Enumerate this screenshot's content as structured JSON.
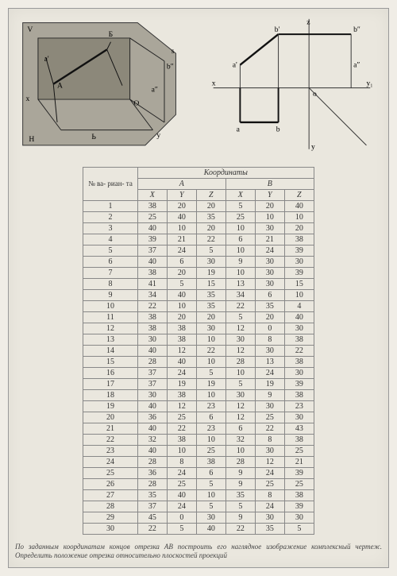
{
  "diagrams": {
    "left_labels": {
      "V": "V",
      "b_top": "Б",
      "a_pr": "a'",
      "x": "x",
      "A": "A",
      "H": "H",
      "b_low": "Ь",
      "a_dpr": "a″",
      "b_dpr": "b″",
      "s": "s",
      "O": "O",
      "y": "y"
    },
    "right_labels": {
      "z": "z",
      "b_pr": "b'",
      "b_dpr": "b″",
      "a_pr": "a'",
      "a_dpr": "a″",
      "x": "x",
      "O": "o",
      "y1": "y₁",
      "a": "a",
      "b": "b",
      "y": "y"
    }
  },
  "table": {
    "header_top": "Координаты",
    "variant_label": "№ ва-\nриан-\nта",
    "group_a": "A",
    "group_b": "B",
    "cols": [
      "X",
      "Y",
      "Z",
      "X",
      "Y",
      "Z"
    ],
    "rows": [
      [
        1,
        38,
        20,
        20,
        5,
        20,
        40
      ],
      [
        2,
        25,
        40,
        35,
        25,
        10,
        10
      ],
      [
        3,
        40,
        10,
        20,
        10,
        30,
        20
      ],
      [
        4,
        39,
        21,
        22,
        6,
        21,
        38
      ],
      [
        5,
        37,
        24,
        5,
        10,
        24,
        39
      ],
      [
        6,
        40,
        6,
        30,
        9,
        30,
        30
      ],
      [
        7,
        38,
        20,
        19,
        10,
        30,
        39
      ],
      [
        8,
        41,
        5,
        15,
        13,
        30,
        15
      ],
      [
        9,
        34,
        40,
        35,
        34,
        6,
        10
      ],
      [
        10,
        22,
        10,
        35,
        22,
        35,
        4
      ],
      [
        11,
        38,
        20,
        20,
        5,
        20,
        40
      ],
      [
        12,
        38,
        38,
        30,
        12,
        0,
        30
      ],
      [
        13,
        30,
        38,
        10,
        30,
        8,
        38
      ],
      [
        14,
        40,
        12,
        22,
        12,
        30,
        22
      ],
      [
        15,
        28,
        40,
        10,
        28,
        13,
        38
      ],
      [
        16,
        37,
        24,
        5,
        10,
        24,
        30
      ],
      [
        17,
        37,
        19,
        19,
        5,
        19,
        39
      ],
      [
        18,
        30,
        38,
        10,
        30,
        9,
        38
      ],
      [
        19,
        40,
        12,
        23,
        12,
        30,
        23
      ],
      [
        20,
        36,
        25,
        6,
        12,
        25,
        30
      ],
      [
        21,
        40,
        22,
        23,
        6,
        22,
        43
      ],
      [
        22,
        32,
        38,
        10,
        32,
        8,
        38
      ],
      [
        23,
        40,
        10,
        25,
        10,
        30,
        25
      ],
      [
        24,
        28,
        8,
        38,
        28,
        12,
        21
      ],
      [
        25,
        36,
        24,
        6,
        9,
        24,
        39
      ],
      [
        26,
        28,
        25,
        5,
        9,
        25,
        25
      ],
      [
        27,
        35,
        40,
        10,
        35,
        8,
        38
      ],
      [
        28,
        37,
        24,
        5,
        5,
        24,
        39
      ],
      [
        29,
        45,
        0,
        30,
        9,
        30,
        30
      ],
      [
        30,
        22,
        5,
        40,
        22,
        35,
        5
      ]
    ]
  },
  "caption": "По заданным координатам концов отрезка AB построить его наглядное изображение комплексный чертеж. Определить положение отрезка относительно плоскостей проекций"
}
